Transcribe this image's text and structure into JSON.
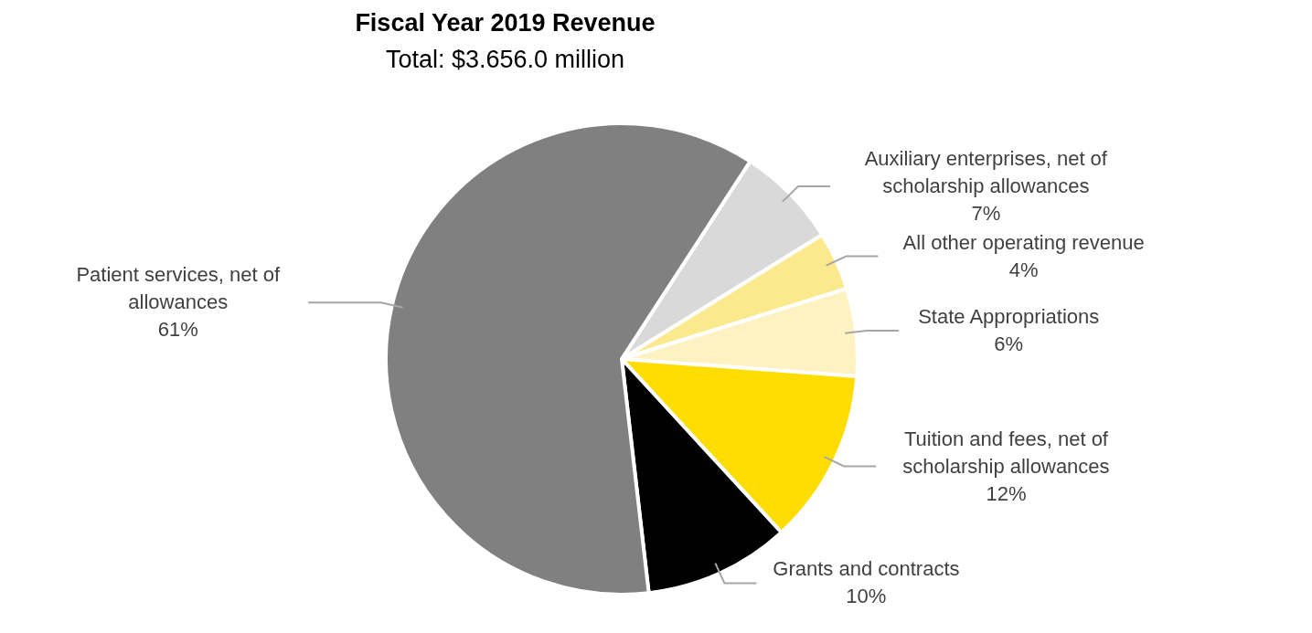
{
  "chart_data": {
    "type": "pie",
    "title": "Fiscal Year 2019 Revenue",
    "subtitle": "Total: $3.656.0 million",
    "categories": [
      "Auxiliary enterprises, net of scholarship allowances",
      "All other operating revenue",
      "State Appropriations",
      "Tuition and fees, net of scholarship allowances",
      "Grants and contracts",
      "Patient services, net of allowances"
    ],
    "values": [
      7,
      4,
      6,
      12,
      10,
      61
    ],
    "colors": [
      "#d9d9d9",
      "#fce98e",
      "#fff2c2",
      "#ffdd00",
      "#000000",
      "#808080"
    ],
    "value_labels": [
      "7%",
      "4%",
      "6%",
      "12%",
      "10%",
      "61%"
    ],
    "legend": false
  }
}
